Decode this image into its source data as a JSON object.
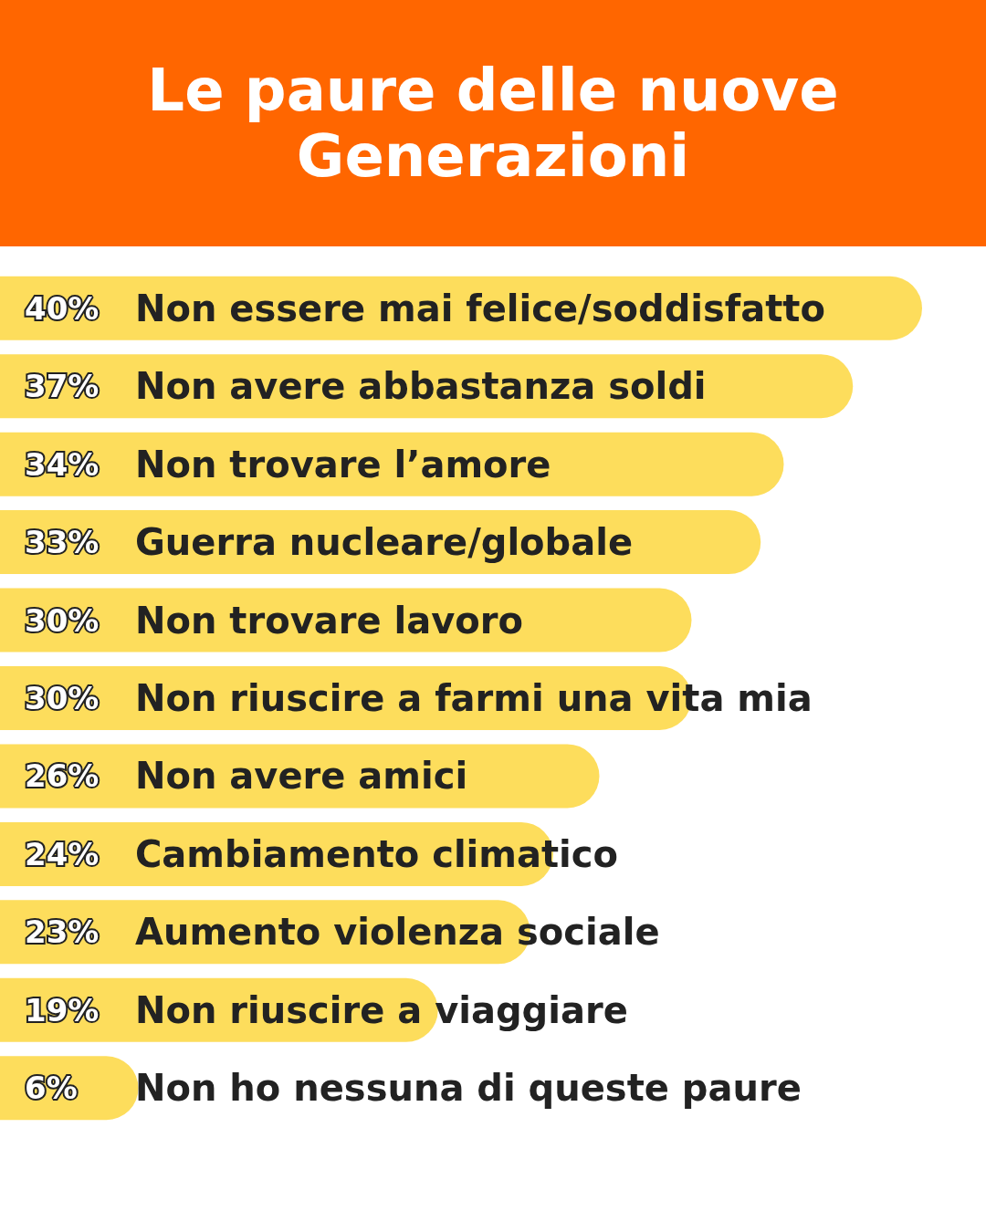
{
  "chart_data": {
    "type": "bar",
    "orientation": "horizontal",
    "title": "Le paure delle nuove Generazioni",
    "categories": [
      "Non essere mai felice/soddisfatto",
      "Non avere abbastanza soldi",
      "Non trovare l’amore",
      "Guerra nucleare/globale",
      "Non trovare lavoro",
      "Non riuscire a farmi una vita mia",
      "Non avere amici",
      "Cambiamento climatico",
      "Aumento violenza sociale",
      "Non riuscire a viaggiare",
      "Non ho nessuna di queste paure"
    ],
    "values": [
      40,
      37,
      34,
      33,
      30,
      30,
      26,
      24,
      23,
      19,
      6
    ],
    "value_labels": [
      "40%",
      "37%",
      "34%",
      "33%",
      "30%",
      "30%",
      "26%",
      "24%",
      "23%",
      "19%",
      "6%"
    ],
    "color": "#fddd5c"
  }
}
